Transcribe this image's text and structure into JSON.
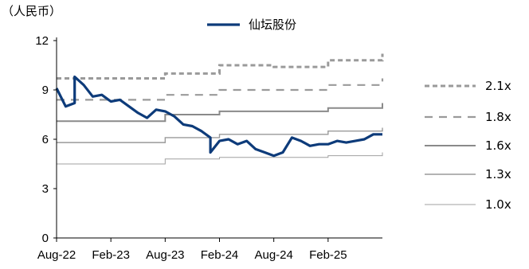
{
  "chart_data": {
    "type": "line",
    "unit_label": "（人民币）",
    "x_range": [
      "2022-08",
      "2025-08"
    ],
    "x_ticks": [
      "Aug-22",
      "Feb-23",
      "Aug-23",
      "Feb-24",
      "Aug-24",
      "Feb-25"
    ],
    "y_ticks": [
      "0",
      "3",
      "6",
      "9",
      "12"
    ],
    "ylim": [
      0,
      12
    ],
    "grid": false,
    "legend": "right",
    "series": [
      {
        "name": "仙坛股份",
        "style": "solid-thick",
        "color": "#0d3b7a",
        "points": [
          [
            "2022-08",
            9.1
          ],
          [
            "2022-09",
            8.0
          ],
          [
            "2022-10",
            8.2
          ],
          [
            "2022-10",
            9.8
          ],
          [
            "2022-11",
            9.3
          ],
          [
            "2022-12",
            8.6
          ],
          [
            "2023-01",
            8.7
          ],
          [
            "2023-02",
            8.3
          ],
          [
            "2023-03",
            8.4
          ],
          [
            "2023-04",
            8.0
          ],
          [
            "2023-05",
            7.6
          ],
          [
            "2023-06",
            7.3
          ],
          [
            "2023-07",
            7.8
          ],
          [
            "2023-08",
            7.7
          ],
          [
            "2023-09",
            7.4
          ],
          [
            "2023-10",
            6.9
          ],
          [
            "2023-11",
            6.8
          ],
          [
            "2023-12",
            6.5
          ],
          [
            "2024-01",
            6.1
          ],
          [
            "2024-01",
            5.2
          ],
          [
            "2024-02",
            5.9
          ],
          [
            "2024-03",
            6.0
          ],
          [
            "2024-04",
            5.7
          ],
          [
            "2024-05",
            5.9
          ],
          [
            "2024-06",
            5.4
          ],
          [
            "2024-07",
            5.2
          ],
          [
            "2024-08",
            5.0
          ],
          [
            "2024-09",
            5.2
          ],
          [
            "2024-10",
            6.1
          ],
          [
            "2024-11",
            5.9
          ],
          [
            "2024-12",
            5.6
          ],
          [
            "2025-01",
            5.7
          ],
          [
            "2025-02",
            5.7
          ],
          [
            "2025-03",
            5.9
          ],
          [
            "2025-04",
            5.8
          ],
          [
            "2025-05",
            5.9
          ],
          [
            "2025-06",
            6.0
          ],
          [
            "2025-07",
            6.3
          ],
          [
            "2025-08",
            6.3
          ]
        ]
      },
      {
        "name": "2.1x",
        "style": "dashed-thick",
        "color": "#9a9a9a",
        "points": [
          [
            "2022-08",
            9.7
          ],
          [
            "2023-08",
            10.0
          ],
          [
            "2024-02",
            10.5
          ],
          [
            "2024-08",
            10.4
          ],
          [
            "2025-02",
            10.8
          ],
          [
            "2025-08",
            11.2
          ]
        ]
      },
      {
        "name": "1.8x",
        "style": "dashed",
        "color": "#9a9a9a",
        "points": [
          [
            "2022-08",
            8.4
          ],
          [
            "2023-08",
            8.7
          ],
          [
            "2024-02",
            9.0
          ],
          [
            "2024-08",
            9.0
          ],
          [
            "2025-02",
            9.3
          ],
          [
            "2025-08",
            9.7
          ]
        ]
      },
      {
        "name": "1.6x",
        "style": "solid",
        "color": "#8a8a8a",
        "points": [
          [
            "2022-08",
            7.1
          ],
          [
            "2023-08",
            7.5
          ],
          [
            "2024-02",
            7.7
          ],
          [
            "2024-08",
            7.7
          ],
          [
            "2025-02",
            7.9
          ],
          [
            "2025-08",
            8.2
          ]
        ]
      },
      {
        "name": "1.3x",
        "style": "solid-thin",
        "color": "#9a9a9a",
        "points": [
          [
            "2022-08",
            5.8
          ],
          [
            "2023-08",
            6.1
          ],
          [
            "2024-02",
            6.3
          ],
          [
            "2024-08",
            6.3
          ],
          [
            "2025-02",
            6.5
          ],
          [
            "2025-08",
            6.7
          ]
        ]
      },
      {
        "name": "1.0x",
        "style": "solid-hair",
        "color": "#a0a0a0",
        "points": [
          [
            "2022-08",
            4.5
          ],
          [
            "2023-08",
            4.8
          ],
          [
            "2024-02",
            4.9
          ],
          [
            "2024-08",
            4.9
          ],
          [
            "2025-02",
            5.0
          ],
          [
            "2025-08",
            5.2
          ]
        ]
      }
    ]
  }
}
